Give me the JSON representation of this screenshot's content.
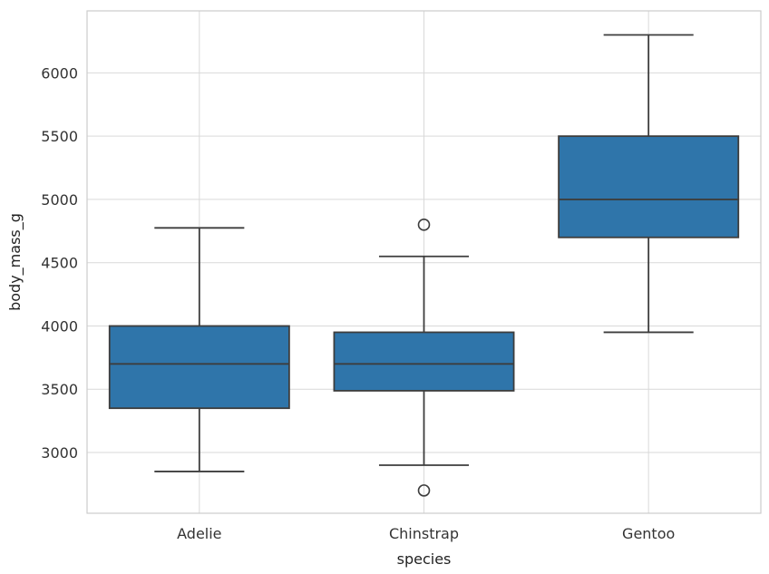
{
  "chart_data": {
    "type": "box",
    "xlabel": "species",
    "ylabel": "body_mass_g",
    "categories": [
      "Adelie",
      "Chinstrap",
      "Gentoo"
    ],
    "y_ticks": [
      "3000",
      "3500",
      "4000",
      "4500",
      "5000",
      "5500",
      "6000"
    ],
    "ylim": [
      2520,
      6490
    ],
    "grid": true,
    "colors": {
      "box_fill": "#2f75aa",
      "line": "#3d3d3d",
      "grid": "#d9d9d9",
      "frame": "#cccccc",
      "background": "#ffffff"
    },
    "boxes": [
      {
        "name": "Adelie",
        "whisker_low": 2850,
        "q1": 3350,
        "median": 3700,
        "q3": 4000,
        "whisker_high": 4775,
        "outliers": []
      },
      {
        "name": "Chinstrap",
        "whisker_low": 2900,
        "q1": 3488,
        "median": 3700,
        "q3": 3950,
        "whisker_high": 4550,
        "outliers": [
          4800,
          2700
        ]
      },
      {
        "name": "Gentoo",
        "whisker_low": 3950,
        "q1": 4700,
        "median": 5000,
        "q3": 5500,
        "whisker_high": 6300,
        "outliers": []
      }
    ]
  }
}
